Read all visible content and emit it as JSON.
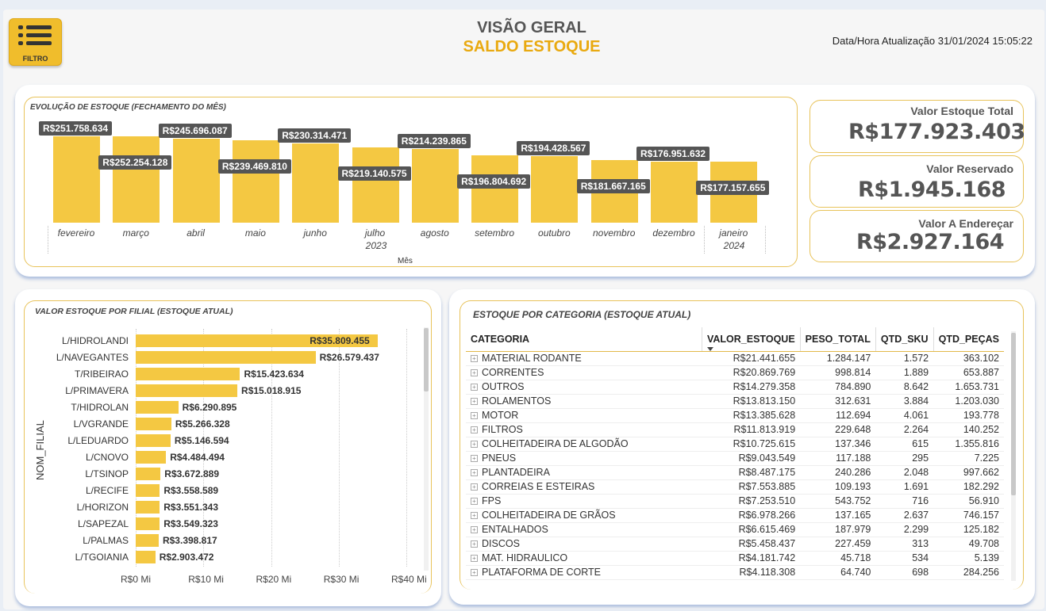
{
  "header": {
    "filter_label": "FILTRO",
    "title": "VISÃO GERAL",
    "subtitle": "SALDO ESTOQUE",
    "update_text": "Data/Hora Atualização 31/01/2024 15:05:22"
  },
  "monthly": {
    "title": "EVOLUÇÃO DE ESTOQUE (FECHAMENTO DO MÊS)",
    "axis_title": "Mês",
    "year_2023": "2023",
    "year_2024": "2024"
  },
  "kpis": {
    "total_label": "Valor Estoque Total",
    "total_value": "R$177.923.403",
    "reserved_label": "Valor Reservado",
    "reserved_value": "R$1.945.168",
    "toaddress_label": "Valor A Endereçar",
    "toaddress_value": "R$2.927.164"
  },
  "filial": {
    "title": "VALOR ESTOQUE POR FILIAL (ESTOQUE ATUAL)",
    "ylabel": "NOM_FILIAL"
  },
  "categoria": {
    "title": "ESTOQUE POR CATEGORIA (ESTOQUE ATUAL)",
    "headers": [
      "CATEGORIA",
      "VALOR_ESTOQUE",
      "PESO_TOTAL",
      "QTD_SKU",
      "QTD_PEÇAS"
    ],
    "rows": [
      [
        "MATERIAL RODANTE",
        "R$21.441.655",
        "1.284.147",
        "1.572",
        "363.102"
      ],
      [
        "CORRENTES",
        "R$20.869.769",
        "998.814",
        "1.889",
        "653.887"
      ],
      [
        "OUTROS",
        "R$14.279.358",
        "784.890",
        "8.642",
        "1.653.731"
      ],
      [
        "ROLAMENTOS",
        "R$13.813.150",
        "312.631",
        "3.884",
        "1.203.030"
      ],
      [
        "MOTOR",
        "R$13.385.628",
        "112.694",
        "4.061",
        "193.778"
      ],
      [
        "FILTROS",
        "R$11.813.919",
        "229.648",
        "2.264",
        "140.252"
      ],
      [
        "COLHEITADEIRA DE ALGODÃO",
        "R$10.725.615",
        "137.346",
        "615",
        "1.355.816"
      ],
      [
        "PNEUS",
        "R$9.043.549",
        "117.188",
        "295",
        "7.225"
      ],
      [
        "PLANTADEIRA",
        "R$8.487.175",
        "240.286",
        "2.048",
        "997.662"
      ],
      [
        "CORREIAS E ESTEIRAS",
        "R$7.553.885",
        "109.193",
        "1.691",
        "182.292"
      ],
      [
        "FPS",
        "R$7.253.510",
        "543.752",
        "716",
        "56.910"
      ],
      [
        "COLHEITADEIRA DE GRÃOS",
        "R$6.978.266",
        "137.165",
        "2.637",
        "746.157"
      ],
      [
        "ENTALHADOS",
        "R$6.615.469",
        "187.979",
        "2.299",
        "125.182"
      ],
      [
        "DISCOS",
        "R$5.458.437",
        "227.459",
        "313",
        "49.708"
      ],
      [
        "MAT. HIDRAULICO",
        "R$4.181.742",
        "45.718",
        "534",
        "5.139"
      ],
      [
        "PLATAFORMA DE CORTE",
        "R$4.118.308",
        "64.740",
        "698",
        "284.256"
      ]
    ]
  },
  "chart_data": [
    {
      "type": "bar",
      "title": "EVOLUÇÃO DE ESTOQUE (FECHAMENTO DO MÊS)",
      "xlabel": "Mês",
      "categories": [
        "fevereiro",
        "março",
        "abril",
        "maio",
        "junho",
        "julho",
        "agosto",
        "setembro",
        "outubro",
        "novembro",
        "dezembro",
        "janeiro"
      ],
      "values": [
        251758634,
        252254128,
        245696087,
        239469810,
        230314471,
        219140575,
        214239865,
        196804692,
        194428567,
        181667165,
        176951632,
        177157655
      ],
      "labels": [
        "R$251.758.634",
        "R$252.254.128",
        "R$245.696.087",
        "R$239.469.810",
        "R$230.314.471",
        "R$219.140.575",
        "R$214.239.865",
        "R$196.804.692",
        "R$194.428.567",
        "R$181.667.165",
        "R$176.951.632",
        "R$177.157.655"
      ],
      "ylim": [
        0,
        260000000
      ]
    },
    {
      "type": "bar",
      "orientation": "horizontal",
      "title": "VALOR ESTOQUE POR FILIAL (ESTOQUE ATUAL)",
      "ylabel": "NOM_FILIAL",
      "categories": [
        "L/HIDROLANDI",
        "L/NAVEGANTES",
        "T/RIBEIRAO",
        "L/PRIMAVERA",
        "T/HIDROLAN",
        "L/VGRANDE",
        "L/LEDUARDO",
        "L/CNOVO",
        "L/TSINOP",
        "L/RECIFE",
        "L/HORIZON",
        "L/SAPEZAL",
        "L/PALMAS",
        "L/TGOIANIA"
      ],
      "values": [
        35809455,
        26579437,
        15423634,
        15018915,
        6290895,
        5266328,
        5146594,
        4484494,
        3672889,
        3558589,
        3551343,
        3549323,
        3398817,
        2903472
      ],
      "labels": [
        "R$35.809.455",
        "R$26.579.437",
        "R$15.423.634",
        "R$15.018.915",
        "R$6.290.895",
        "R$5.266.328",
        "R$5.146.594",
        "R$4.484.494",
        "R$3.672.889",
        "R$3.558.589",
        "R$3.551.343",
        "R$3.549.323",
        "R$3.398.817",
        "R$2.903.472"
      ],
      "xticks": [
        "R$0 Mi",
        "R$10 Mi",
        "R$20 Mi",
        "R$30 Mi",
        "R$40 Mi"
      ],
      "xlim": [
        0,
        40000000
      ]
    }
  ]
}
